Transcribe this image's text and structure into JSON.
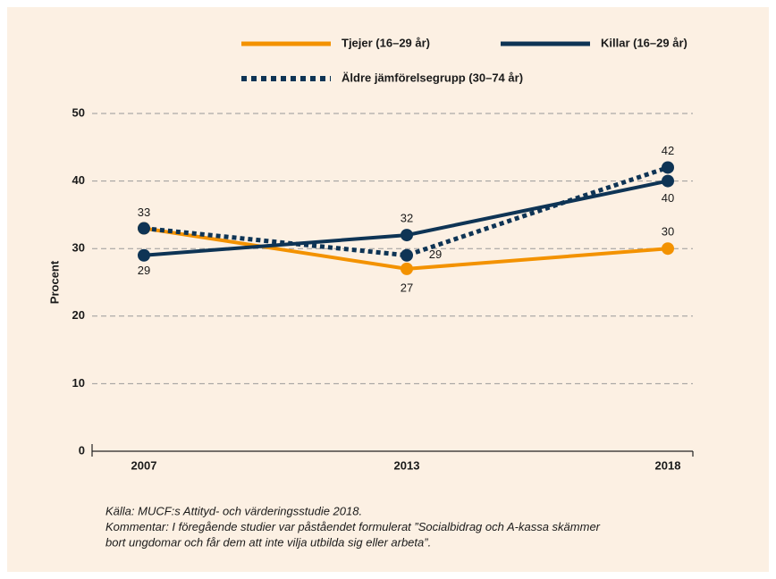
{
  "chart_data": {
    "type": "line",
    "ylabel": "Procent",
    "categories": [
      "2007",
      "2013",
      "2018"
    ],
    "series": [
      {
        "name": "Tjejer (16–29 år)",
        "color": "#f39200",
        "style": "solid",
        "values": [
          33,
          27,
          30
        ]
      },
      {
        "name": "Killar (16–29 år)",
        "color": "#0e3455",
        "style": "solid",
        "values": [
          29,
          32,
          40
        ]
      },
      {
        "name": "Äldre jämförelsegrupp (30–74 år)",
        "color": "#0e3455",
        "style": "dotted",
        "values": [
          33,
          29,
          42
        ]
      }
    ],
    "ylim": [
      0,
      50
    ],
    "yticks": [
      0,
      10,
      20,
      30,
      40,
      50
    ],
    "grid": true,
    "legend": "top",
    "notes": [
      "Källa: MUCF:s Attityd- och värderingsstudie 2018.",
      "Kommentar:  I föregående studier var påståendet formulerat ”Socialbidrag och A-kassa skämmer",
      "bort ungdomar och får dem att inte vilja utbilda sig eller arbeta”."
    ]
  }
}
